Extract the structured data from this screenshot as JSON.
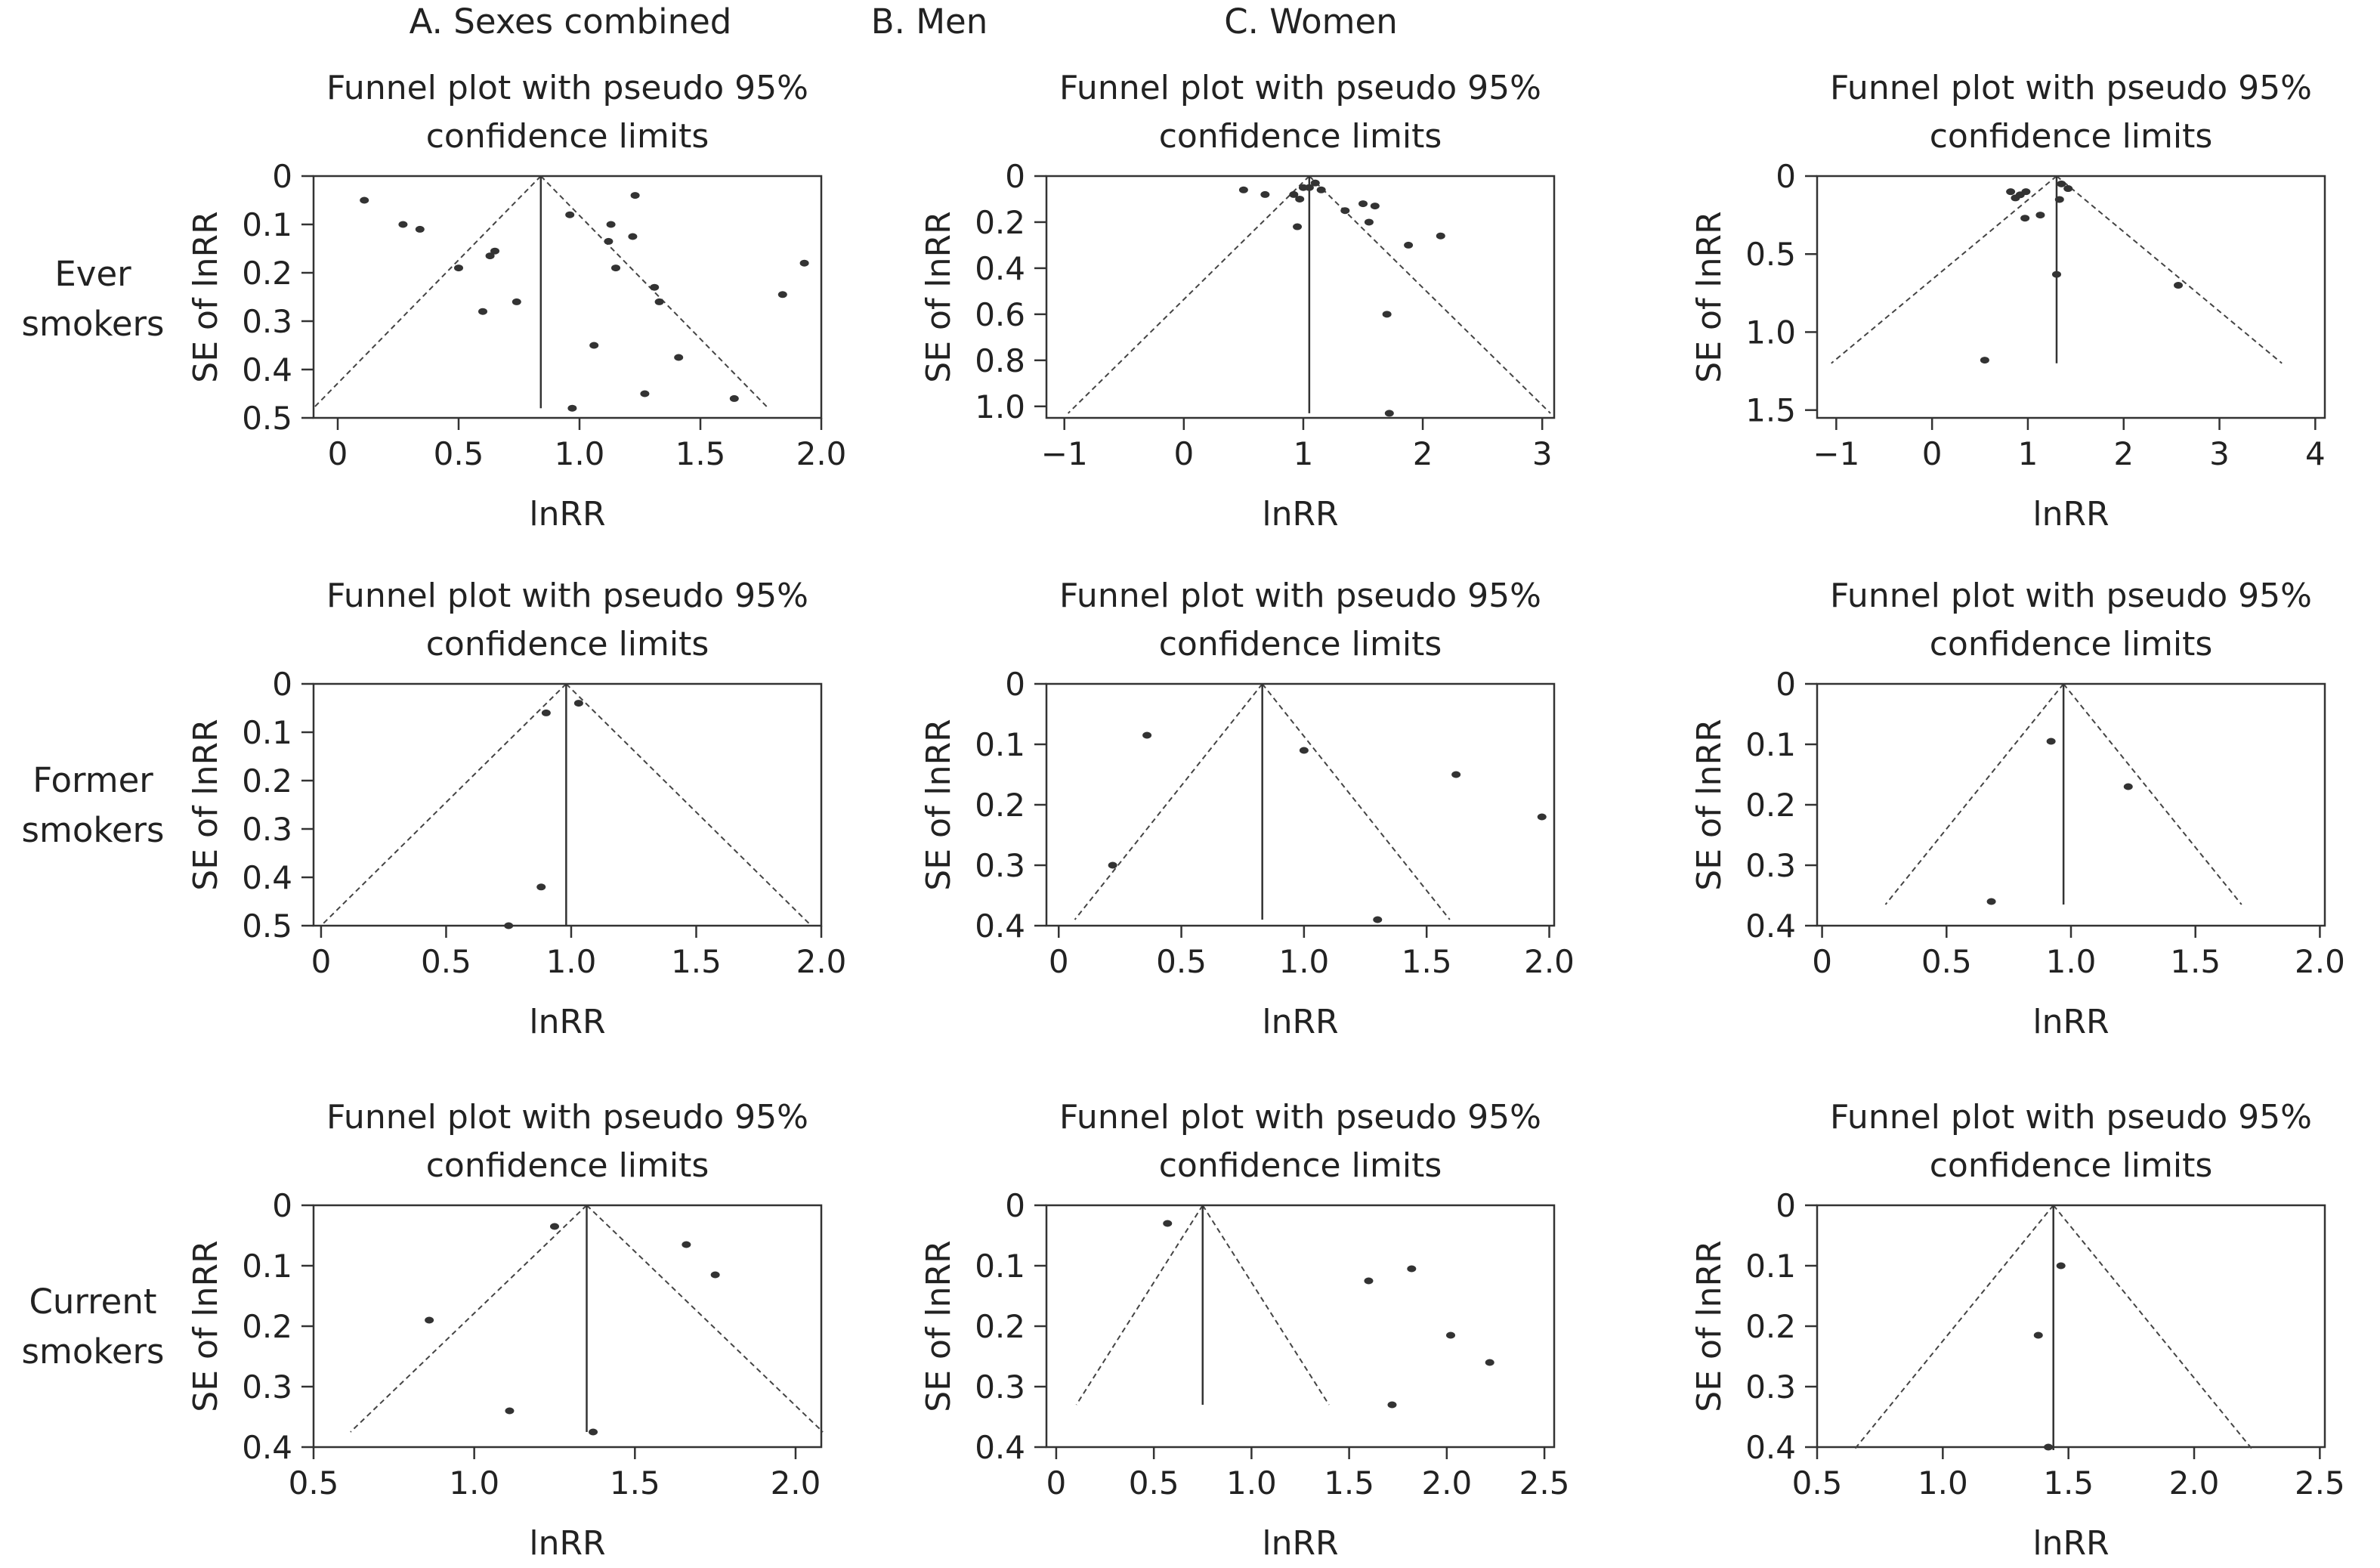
{
  "column_titles": [
    "A. Sexes combined",
    "B. Men",
    "C. Women"
  ],
  "row_titles": [
    [
      "Ever",
      "smokers"
    ],
    [
      "Former",
      "smokers"
    ],
    [
      "Current",
      "smokers"
    ]
  ],
  "chart_data": [
    {
      "id": "A-ever",
      "type": "scatter",
      "title": "Funnel plot with pseudo 95% confidence limits",
      "xlabel": "lnRR",
      "ylabel": "SE of lnRR",
      "xlim": [
        -0.1,
        2.0
      ],
      "ylim": [
        0,
        0.5
      ],
      "y_reversed": true,
      "xticks": [
        0,
        0.5,
        1.0,
        1.5,
        2.0
      ],
      "xticklabels": [
        "0",
        "0.5",
        "1.0",
        "1.5",
        "2.0"
      ],
      "yticks": [
        0,
        0.1,
        0.2,
        0.3,
        0.4,
        0.5
      ],
      "yticklabels": [
        "0",
        "0.1",
        "0.2",
        "0.3",
        "0.4",
        "0.5"
      ],
      "pooled_estimate": 0.84,
      "funnel_max_se": 0.48,
      "points": [
        [
          0.11,
          0.05
        ],
        [
          0.27,
          0.1
        ],
        [
          0.34,
          0.11
        ],
        [
          0.5,
          0.19
        ],
        [
          0.6,
          0.28
        ],
        [
          0.63,
          0.165
        ],
        [
          0.65,
          0.155
        ],
        [
          0.74,
          0.26
        ],
        [
          0.96,
          0.08
        ],
        [
          0.97,
          0.48
        ],
        [
          1.06,
          0.35
        ],
        [
          1.12,
          0.135
        ],
        [
          1.13,
          0.1
        ],
        [
          1.15,
          0.19
        ],
        [
          1.22,
          0.125
        ],
        [
          1.23,
          0.04
        ],
        [
          1.27,
          0.45
        ],
        [
          1.31,
          0.23
        ],
        [
          1.33,
          0.26
        ],
        [
          1.41,
          0.375
        ],
        [
          1.64,
          0.46
        ],
        [
          1.84,
          0.245
        ],
        [
          1.93,
          0.18
        ]
      ]
    },
    {
      "id": "B-ever",
      "type": "scatter",
      "title": "Funnel plot with pseudo 95% confidence limits",
      "xlabel": "lnRR",
      "ylabel": "SE of lnRR",
      "xlim": [
        -1.15,
        3.1
      ],
      "ylim": [
        0,
        1.05
      ],
      "y_reversed": true,
      "xticks": [
        -1,
        0,
        1,
        2,
        3
      ],
      "xticklabels": [
        "−1",
        "0",
        "1",
        "2",
        "3"
      ],
      "yticks": [
        0,
        0.2,
        0.4,
        0.6,
        0.8,
        1.0
      ],
      "yticklabels": [
        "0",
        "0.2",
        "0.4",
        "0.6",
        "0.8",
        "1.0"
      ],
      "pooled_estimate": 1.05,
      "funnel_max_se": 1.03,
      "points": [
        [
          0.5,
          0.06
        ],
        [
          0.68,
          0.08
        ],
        [
          0.92,
          0.08
        ],
        [
          0.95,
          0.22
        ],
        [
          0.97,
          0.1
        ],
        [
          1.0,
          0.05
        ],
        [
          1.05,
          0.05
        ],
        [
          1.1,
          0.03
        ],
        [
          1.15,
          0.06
        ],
        [
          1.35,
          0.15
        ],
        [
          1.5,
          0.12
        ],
        [
          1.55,
          0.2
        ],
        [
          1.6,
          0.13
        ],
        [
          1.7,
          0.6
        ],
        [
          1.72,
          1.03
        ],
        [
          1.88,
          0.3
        ],
        [
          2.15,
          0.26
        ]
      ]
    },
    {
      "id": "C-ever",
      "type": "scatter",
      "title": "Funnel plot with pseudo 95% confidence limits",
      "xlabel": "lnRR",
      "ylabel": "SE of lnRR",
      "xlim": [
        -1.2,
        4.1
      ],
      "ylim": [
        0,
        1.55
      ],
      "y_reversed": true,
      "xticks": [
        -1,
        0,
        1,
        2,
        3,
        4
      ],
      "xticklabels": [
        "−1",
        "0",
        "1",
        "2",
        "3",
        "4"
      ],
      "yticks": [
        0,
        0.5,
        1.0,
        1.5
      ],
      "yticklabels": [
        "0",
        "0.5",
        "1.0",
        "1.5"
      ],
      "pooled_estimate": 1.3,
      "funnel_max_se": 1.2,
      "points": [
        [
          0.55,
          1.18
        ],
        [
          0.82,
          0.1
        ],
        [
          0.87,
          0.14
        ],
        [
          0.92,
          0.12
        ],
        [
          0.97,
          0.27
        ],
        [
          0.98,
          0.1
        ],
        [
          1.13,
          0.25
        ],
        [
          1.3,
          0.63
        ],
        [
          1.33,
          0.15
        ],
        [
          1.35,
          0.05
        ],
        [
          1.42,
          0.08
        ],
        [
          2.57,
          0.7
        ]
      ]
    },
    {
      "id": "A-former",
      "type": "scatter",
      "title": "Funnel plot with pseudo 95% confidence limits",
      "xlabel": "lnRR",
      "ylabel": "SE of lnRR",
      "xlim": [
        -0.03,
        2.0
      ],
      "ylim": [
        0,
        0.5
      ],
      "y_reversed": true,
      "xticks": [
        0,
        0.5,
        1.0,
        1.5,
        2.0
      ],
      "xticklabels": [
        "0",
        "0.5",
        "1.0",
        "1.5",
        "2.0"
      ],
      "yticks": [
        0,
        0.1,
        0.2,
        0.3,
        0.4,
        0.5
      ],
      "yticklabels": [
        "0",
        "0.1",
        "0.2",
        "0.3",
        "0.4",
        "0.5"
      ],
      "pooled_estimate": 0.98,
      "funnel_max_se": 0.5,
      "points": [
        [
          0.75,
          0.5
        ],
        [
          0.88,
          0.42
        ],
        [
          0.9,
          0.06
        ],
        [
          1.03,
          0.04
        ]
      ]
    },
    {
      "id": "B-former",
      "type": "scatter",
      "title": "Funnel plot with pseudo 95% confidence limits",
      "xlabel": "lnRR",
      "ylabel": "SE of lnRR",
      "xlim": [
        -0.05,
        2.02
      ],
      "ylim": [
        0,
        0.4
      ],
      "y_reversed": true,
      "xticks": [
        0,
        0.5,
        1.0,
        1.5,
        2.0
      ],
      "xticklabels": [
        "0",
        "0.5",
        "1.0",
        "1.5",
        "2.0"
      ],
      "yticks": [
        0,
        0.1,
        0.2,
        0.3,
        0.4
      ],
      "yticklabels": [
        "0",
        "0.1",
        "0.2",
        "0.3",
        "0.4"
      ],
      "pooled_estimate": 0.83,
      "funnel_max_se": 0.39,
      "points": [
        [
          0.22,
          0.3
        ],
        [
          0.36,
          0.085
        ],
        [
          1.0,
          0.11
        ],
        [
          1.3,
          0.39
        ],
        [
          1.62,
          0.15
        ],
        [
          1.97,
          0.22
        ]
      ]
    },
    {
      "id": "C-former",
      "type": "scatter",
      "title": "Funnel plot with pseudo 95% confidence limits",
      "xlabel": "lnRR",
      "ylabel": "SE of lnRR",
      "xlim": [
        -0.02,
        2.02
      ],
      "ylim": [
        0,
        0.4
      ],
      "y_reversed": true,
      "xticks": [
        0,
        0.5,
        1.0,
        1.5,
        2.0
      ],
      "xticklabels": [
        "0",
        "0.5",
        "1.0",
        "1.5",
        "2.0"
      ],
      "yticks": [
        0,
        0.1,
        0.2,
        0.3,
        0.4
      ],
      "yticklabels": [
        "0",
        "0.1",
        "0.2",
        "0.3",
        "0.4"
      ],
      "pooled_estimate": 0.97,
      "funnel_max_se": 0.365,
      "points": [
        [
          0.68,
          0.36
        ],
        [
          0.92,
          0.095
        ],
        [
          1.23,
          0.17
        ]
      ]
    },
    {
      "id": "A-current",
      "type": "scatter",
      "title": "Funnel plot with pseudo 95% confidence limits",
      "xlabel": "lnRR",
      "ylabel": "SE of lnRR",
      "xlim": [
        0.5,
        2.08
      ],
      "ylim": [
        0,
        0.4
      ],
      "y_reversed": true,
      "xticks": [
        0.5,
        1.0,
        1.5,
        2.0
      ],
      "xticklabels": [
        "0.5",
        "1.0",
        "1.5",
        "2.0"
      ],
      "yticks": [
        0,
        0.1,
        0.2,
        0.3,
        0.4
      ],
      "yticklabels": [
        "0",
        "0.1",
        "0.2",
        "0.3",
        "0.4"
      ],
      "pooled_estimate": 1.35,
      "funnel_max_se": 0.375,
      "points": [
        [
          0.86,
          0.19
        ],
        [
          1.11,
          0.34
        ],
        [
          1.25,
          0.035
        ],
        [
          1.37,
          0.375
        ],
        [
          1.66,
          0.065
        ],
        [
          1.75,
          0.115
        ]
      ]
    },
    {
      "id": "B-current",
      "type": "scatter",
      "title": "Funnel plot with pseudo 95% confidence limits",
      "xlabel": "lnRR",
      "ylabel": "SE of lnRR",
      "xlim": [
        -0.05,
        2.55
      ],
      "ylim": [
        0,
        0.4
      ],
      "y_reversed": true,
      "xticks": [
        0,
        0.5,
        1.0,
        1.5,
        2.0,
        2.5
      ],
      "xticklabels": [
        "0",
        "0.5",
        "1.0",
        "1.5",
        "2.0",
        "2.5"
      ],
      "yticks": [
        0,
        0.1,
        0.2,
        0.3,
        0.4
      ],
      "yticklabels": [
        "0",
        "0.1",
        "0.2",
        "0.3",
        "0.4"
      ],
      "pooled_estimate": 0.75,
      "funnel_max_se": 0.33,
      "points": [
        [
          0.57,
          0.03
        ],
        [
          1.6,
          0.125
        ],
        [
          1.82,
          0.105
        ],
        [
          1.72,
          0.33
        ],
        [
          2.02,
          0.215
        ],
        [
          2.22,
          0.26
        ]
      ]
    },
    {
      "id": "C-current",
      "type": "scatter",
      "title": "Funnel plot with pseudo 95% confidence limits",
      "xlabel": "lnRR",
      "ylabel": "SE of lnRR",
      "xlim": [
        0.5,
        2.52
      ],
      "ylim": [
        0,
        0.4
      ],
      "y_reversed": true,
      "xticks": [
        0.5,
        1.0,
        1.5,
        2.0,
        2.5
      ],
      "xticklabels": [
        "0.5",
        "1.0",
        "1.5",
        "2.0",
        "2.5"
      ],
      "yticks": [
        0,
        0.1,
        0.2,
        0.3,
        0.4
      ],
      "yticklabels": [
        "0",
        "0.1",
        "0.2",
        "0.3",
        "0.4"
      ],
      "pooled_estimate": 1.44,
      "funnel_max_se": 0.405,
      "points": [
        [
          1.38,
          0.215
        ],
        [
          1.42,
          0.4
        ],
        [
          1.47,
          0.1
        ]
      ]
    }
  ]
}
